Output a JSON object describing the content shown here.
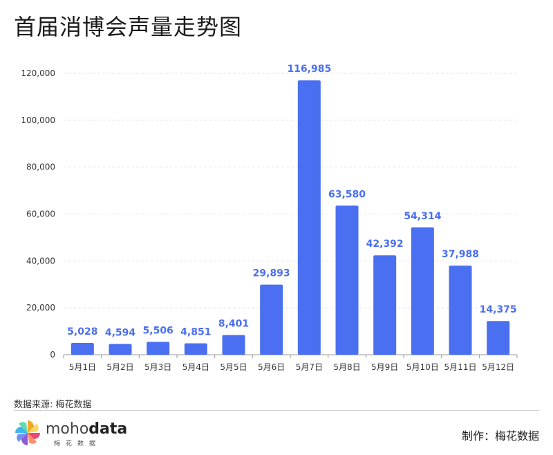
{
  "header": {
    "title": "首届消博会声量走势图"
  },
  "footer": {
    "source": "数据来源: 梅花数据",
    "credit": "制作：梅花数据",
    "logo_main_light": "moho",
    "logo_main_bold": "data",
    "logo_sub": "梅花数据"
  },
  "colors": {
    "bar": "#4a6ff0",
    "label": "#4a6ff0",
    "grid": "#e3e3e3"
  },
  "chart_data": {
    "type": "bar",
    "title": "首届消博会声量走势图",
    "xlabel": "",
    "ylabel": "",
    "categories": [
      "5月1日",
      "5月2日",
      "5月3日",
      "5月4日",
      "5月5日",
      "5月6日",
      "5月7日",
      "5月8日",
      "5月9日",
      "5月10日",
      "5月11日",
      "5月12日"
    ],
    "values": [
      5028,
      4594,
      5506,
      4851,
      8401,
      29893,
      116985,
      63580,
      42392,
      54314,
      37988,
      14375
    ],
    "value_labels": [
      "5,028",
      "4,594",
      "5,506",
      "4,851",
      "8,401",
      "29,893",
      "116,985",
      "63,580",
      "42,392",
      "54,314",
      "37,988",
      "14,375"
    ],
    "ylim": [
      0,
      120000
    ],
    "yticks": [
      0,
      20000,
      40000,
      60000,
      80000,
      100000,
      120000
    ],
    "ytick_labels": [
      "0",
      "20,000",
      "40,000",
      "60,000",
      "80,000",
      "100,000",
      "120,000"
    ],
    "grid": true,
    "legend": "none"
  }
}
